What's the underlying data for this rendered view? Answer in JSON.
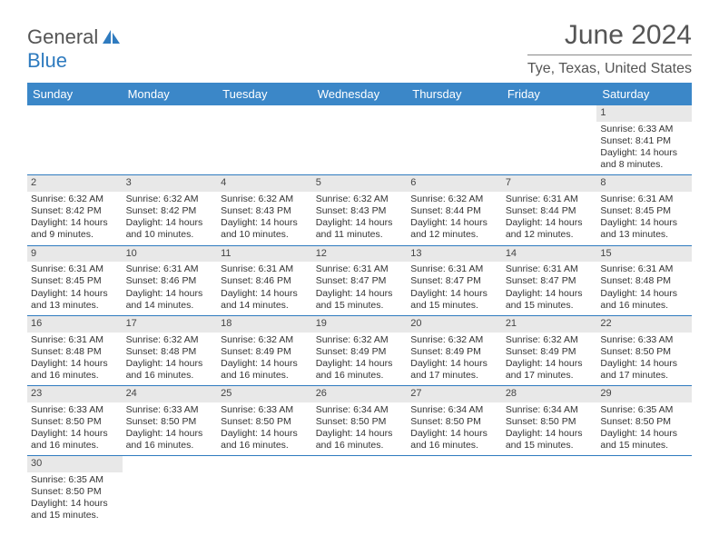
{
  "logo": {
    "text1": "General",
    "text2": "Blue"
  },
  "title": "June 2024",
  "location": "Tye, Texas, United States",
  "colors": {
    "header_bg": "#3b87c8",
    "header_text": "#ffffff",
    "border": "#2f7bbf",
    "daynum_bg": "#e8e8e8",
    "text": "#333333",
    "logo_gray": "#555555",
    "logo_blue": "#2f7bbf"
  },
  "dayHeaders": [
    "Sunday",
    "Monday",
    "Tuesday",
    "Wednesday",
    "Thursday",
    "Friday",
    "Saturday"
  ],
  "weeks": [
    [
      {
        "num": "",
        "lines": []
      },
      {
        "num": "",
        "lines": []
      },
      {
        "num": "",
        "lines": []
      },
      {
        "num": "",
        "lines": []
      },
      {
        "num": "",
        "lines": []
      },
      {
        "num": "",
        "lines": []
      },
      {
        "num": "1",
        "lines": [
          "Sunrise: 6:33 AM",
          "Sunset: 8:41 PM",
          "Daylight: 14 hours and 8 minutes."
        ]
      }
    ],
    [
      {
        "num": "2",
        "lines": [
          "Sunrise: 6:32 AM",
          "Sunset: 8:42 PM",
          "Daylight: 14 hours and 9 minutes."
        ]
      },
      {
        "num": "3",
        "lines": [
          "Sunrise: 6:32 AM",
          "Sunset: 8:42 PM",
          "Daylight: 14 hours and 10 minutes."
        ]
      },
      {
        "num": "4",
        "lines": [
          "Sunrise: 6:32 AM",
          "Sunset: 8:43 PM",
          "Daylight: 14 hours and 10 minutes."
        ]
      },
      {
        "num": "5",
        "lines": [
          "Sunrise: 6:32 AM",
          "Sunset: 8:43 PM",
          "Daylight: 14 hours and 11 minutes."
        ]
      },
      {
        "num": "6",
        "lines": [
          "Sunrise: 6:32 AM",
          "Sunset: 8:44 PM",
          "Daylight: 14 hours and 12 minutes."
        ]
      },
      {
        "num": "7",
        "lines": [
          "Sunrise: 6:31 AM",
          "Sunset: 8:44 PM",
          "Daylight: 14 hours and 12 minutes."
        ]
      },
      {
        "num": "8",
        "lines": [
          "Sunrise: 6:31 AM",
          "Sunset: 8:45 PM",
          "Daylight: 14 hours and 13 minutes."
        ]
      }
    ],
    [
      {
        "num": "9",
        "lines": [
          "Sunrise: 6:31 AM",
          "Sunset: 8:45 PM",
          "Daylight: 14 hours and 13 minutes."
        ]
      },
      {
        "num": "10",
        "lines": [
          "Sunrise: 6:31 AM",
          "Sunset: 8:46 PM",
          "Daylight: 14 hours and 14 minutes."
        ]
      },
      {
        "num": "11",
        "lines": [
          "Sunrise: 6:31 AM",
          "Sunset: 8:46 PM",
          "Daylight: 14 hours and 14 minutes."
        ]
      },
      {
        "num": "12",
        "lines": [
          "Sunrise: 6:31 AM",
          "Sunset: 8:47 PM",
          "Daylight: 14 hours and 15 minutes."
        ]
      },
      {
        "num": "13",
        "lines": [
          "Sunrise: 6:31 AM",
          "Sunset: 8:47 PM",
          "Daylight: 14 hours and 15 minutes."
        ]
      },
      {
        "num": "14",
        "lines": [
          "Sunrise: 6:31 AM",
          "Sunset: 8:47 PM",
          "Daylight: 14 hours and 15 minutes."
        ]
      },
      {
        "num": "15",
        "lines": [
          "Sunrise: 6:31 AM",
          "Sunset: 8:48 PM",
          "Daylight: 14 hours and 16 minutes."
        ]
      }
    ],
    [
      {
        "num": "16",
        "lines": [
          "Sunrise: 6:31 AM",
          "Sunset: 8:48 PM",
          "Daylight: 14 hours and 16 minutes."
        ]
      },
      {
        "num": "17",
        "lines": [
          "Sunrise: 6:32 AM",
          "Sunset: 8:48 PM",
          "Daylight: 14 hours and 16 minutes."
        ]
      },
      {
        "num": "18",
        "lines": [
          "Sunrise: 6:32 AM",
          "Sunset: 8:49 PM",
          "Daylight: 14 hours and 16 minutes."
        ]
      },
      {
        "num": "19",
        "lines": [
          "Sunrise: 6:32 AM",
          "Sunset: 8:49 PM",
          "Daylight: 14 hours and 16 minutes."
        ]
      },
      {
        "num": "20",
        "lines": [
          "Sunrise: 6:32 AM",
          "Sunset: 8:49 PM",
          "Daylight: 14 hours and 17 minutes."
        ]
      },
      {
        "num": "21",
        "lines": [
          "Sunrise: 6:32 AM",
          "Sunset: 8:49 PM",
          "Daylight: 14 hours and 17 minutes."
        ]
      },
      {
        "num": "22",
        "lines": [
          "Sunrise: 6:33 AM",
          "Sunset: 8:50 PM",
          "Daylight: 14 hours and 17 minutes."
        ]
      }
    ],
    [
      {
        "num": "23",
        "lines": [
          "Sunrise: 6:33 AM",
          "Sunset: 8:50 PM",
          "Daylight: 14 hours and 16 minutes."
        ]
      },
      {
        "num": "24",
        "lines": [
          "Sunrise: 6:33 AM",
          "Sunset: 8:50 PM",
          "Daylight: 14 hours and 16 minutes."
        ]
      },
      {
        "num": "25",
        "lines": [
          "Sunrise: 6:33 AM",
          "Sunset: 8:50 PM",
          "Daylight: 14 hours and 16 minutes."
        ]
      },
      {
        "num": "26",
        "lines": [
          "Sunrise: 6:34 AM",
          "Sunset: 8:50 PM",
          "Daylight: 14 hours and 16 minutes."
        ]
      },
      {
        "num": "27",
        "lines": [
          "Sunrise: 6:34 AM",
          "Sunset: 8:50 PM",
          "Daylight: 14 hours and 16 minutes."
        ]
      },
      {
        "num": "28",
        "lines": [
          "Sunrise: 6:34 AM",
          "Sunset: 8:50 PM",
          "Daylight: 14 hours and 15 minutes."
        ]
      },
      {
        "num": "29",
        "lines": [
          "Sunrise: 6:35 AM",
          "Sunset: 8:50 PM",
          "Daylight: 14 hours and 15 minutes."
        ]
      }
    ],
    [
      {
        "num": "30",
        "lines": [
          "Sunrise: 6:35 AM",
          "Sunset: 8:50 PM",
          "Daylight: 14 hours and 15 minutes."
        ]
      },
      {
        "num": "",
        "lines": []
      },
      {
        "num": "",
        "lines": []
      },
      {
        "num": "",
        "lines": []
      },
      {
        "num": "",
        "lines": []
      },
      {
        "num": "",
        "lines": []
      },
      {
        "num": "",
        "lines": []
      }
    ]
  ]
}
